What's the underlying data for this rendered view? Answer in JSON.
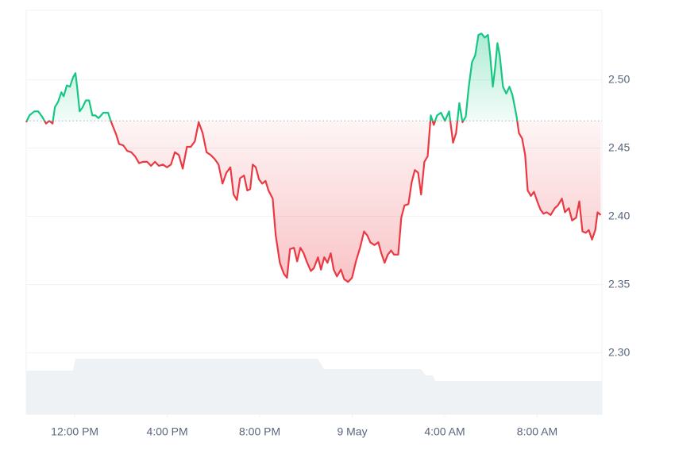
{
  "chart_data": {
    "type": "line",
    "x": [
      9.9,
      10.04,
      10.25,
      10.42,
      10.59,
      10.76,
      10.9,
      11.04,
      11.14,
      11.28,
      11.42,
      11.52,
      11.66,
      11.79,
      11.93,
      12.03,
      12.1,
      12.21,
      12.34,
      12.48,
      12.62,
      12.76,
      12.89,
      13.03,
      13.24,
      13.44,
      13.58,
      13.79,
      13.92,
      14.1,
      14.27,
      14.44,
      14.61,
      14.78,
      14.96,
      15.13,
      15.3,
      15.47,
      15.64,
      15.81,
      15.99,
      16.16,
      16.33,
      16.5,
      16.67,
      16.85,
      17.02,
      17.19,
      17.36,
      17.53,
      17.7,
      17.88,
      18.05,
      18.22,
      18.39,
      18.56,
      18.73,
      18.87,
      19.01,
      19.15,
      19.32,
      19.46,
      19.59,
      19.7,
      19.83,
      19.97,
      20.11,
      20.25,
      20.38,
      20.56,
      20.69,
      20.87,
      21.04,
      21.18,
      21.31,
      21.48,
      21.62,
      21.76,
      21.9,
      22.03,
      22.21,
      22.34,
      22.52,
      22.65,
      22.79,
      22.93,
      23.07,
      23.2,
      23.34,
      23.51,
      23.65,
      23.82,
      23.99,
      24.16,
      24.34,
      24.51,
      24.65,
      24.78,
      24.96,
      25.13,
      25.26,
      25.4,
      25.54,
      25.68,
      25.81,
      25.99,
      26.12,
      26.26,
      26.43,
      26.57,
      26.71,
      26.85,
      26.98,
      27.12,
      27.26,
      27.4,
      27.53,
      27.67,
      27.84,
      28.01,
      28.19,
      28.36,
      28.49,
      28.63,
      28.77,
      28.91,
      29.04,
      29.18,
      29.32,
      29.46,
      29.59,
      29.73,
      29.87,
      29.97,
      30.08,
      30.18,
      30.28,
      30.38,
      30.52,
      30.66,
      30.8,
      30.93,
      31.11,
      31.21,
      31.35,
      31.48,
      31.59,
      31.73,
      31.86,
      32.0,
      32.14,
      32.27,
      32.41,
      32.58,
      32.76,
      32.89,
      33.07,
      33.2,
      33.37,
      33.51,
      33.68,
      33.82,
      33.96,
      34.1,
      34.23,
      34.37,
      34.51,
      34.61,
      34.75
    ],
    "values": [
      2.469,
      2.474,
      2.477,
      2.477,
      2.473,
      2.468,
      2.47,
      2.468,
      2.48,
      2.484,
      2.491,
      2.488,
      2.496,
      2.495,
      2.502,
      2.505,
      2.495,
      2.477,
      2.48,
      2.485,
      2.485,
      2.474,
      2.474,
      2.472,
      2.476,
      2.476,
      2.469,
      2.46,
      2.453,
      2.452,
      2.448,
      2.447,
      2.444,
      2.439,
      2.44,
      2.44,
      2.437,
      2.44,
      2.437,
      2.438,
      2.436,
      2.438,
      2.447,
      2.445,
      2.435,
      2.451,
      2.451,
      2.455,
      2.469,
      2.461,
      2.447,
      2.445,
      2.442,
      2.438,
      2.424,
      2.432,
      2.436,
      2.416,
      2.412,
      2.428,
      2.43,
      2.419,
      2.42,
      2.438,
      2.436,
      2.427,
      2.424,
      2.426,
      2.419,
      2.413,
      2.386,
      2.366,
      2.358,
      2.355,
      2.376,
      2.377,
      2.367,
      2.377,
      2.373,
      2.367,
      2.36,
      2.362,
      2.37,
      2.361,
      2.37,
      2.366,
      2.373,
      2.361,
      2.356,
      2.361,
      2.354,
      2.352,
      2.355,
      2.367,
      2.377,
      2.389,
      2.386,
      2.381,
      2.379,
      2.381,
      2.373,
      2.366,
      2.372,
      2.375,
      2.372,
      2.372,
      2.399,
      2.408,
      2.409,
      2.425,
      2.434,
      2.432,
      2.416,
      2.44,
      2.444,
      2.474,
      2.467,
      2.474,
      2.476,
      2.47,
      2.477,
      2.454,
      2.461,
      2.483,
      2.469,
      2.473,
      2.495,
      2.513,
      2.518,
      2.533,
      2.534,
      2.531,
      2.533,
      2.517,
      2.495,
      2.509,
      2.527,
      2.518,
      2.495,
      2.49,
      2.495,
      2.489,
      2.473,
      2.461,
      2.457,
      2.445,
      2.419,
      2.415,
      2.418,
      2.411,
      2.405,
      2.402,
      2.403,
      2.401,
      2.406,
      2.408,
      2.413,
      2.403,
      2.406,
      2.397,
      2.399,
      2.411,
      2.389,
      2.388,
      2.39,
      2.383,
      2.39,
      2.403,
      2.401
    ],
    "baseline": 2.47,
    "up_color": "#16c784",
    "down_color": "#ea3943",
    "xlim": [
      9.9,
      34.8
    ],
    "xticks": [
      {
        "value": 12,
        "label": "12:00 PM"
      },
      {
        "value": 16,
        "label": "4:00 PM"
      },
      {
        "value": 20,
        "label": "8:00 PM"
      },
      {
        "value": 24,
        "label": "9 May"
      },
      {
        "value": 28,
        "label": "4:00 AM"
      },
      {
        "value": 32,
        "label": "8:00 AM"
      }
    ],
    "ylim": [
      2.255,
      2.551
    ],
    "yticks": [
      {
        "value": 2.3,
        "label": "2.30"
      },
      {
        "value": 2.35,
        "label": "2.35"
      },
      {
        "value": 2.4,
        "label": "2.40"
      },
      {
        "value": 2.45,
        "label": "2.45"
      },
      {
        "value": 2.5,
        "label": "2.50"
      }
    ],
    "grid": true
  }
}
